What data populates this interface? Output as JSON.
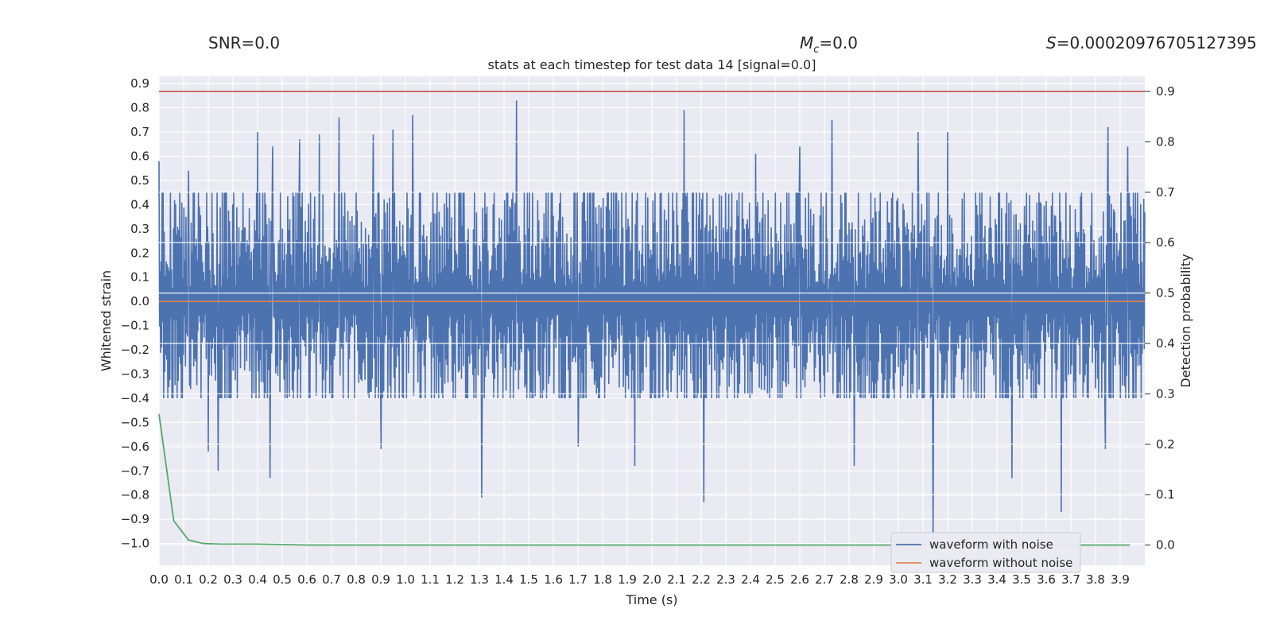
{
  "header": {
    "snr_label": "SNR=0.0",
    "mc_symbol": "M",
    "mc_sub": "c",
    "mc_value": "=0.0",
    "s_symbol": "S",
    "s_value": "=0.00020976705127395"
  },
  "chart_data": {
    "type": "line",
    "title": "stats at each timestep for test data 14 [signal=0.0]",
    "xlabel": "Time (s)",
    "ylabel": "Whitened strain",
    "y2label": "Detection probability",
    "xlim": [
      0.0,
      4.0
    ],
    "ylim": [
      -1.09,
      0.93
    ],
    "y2lim": [
      -0.04,
      0.93
    ],
    "xticks": [
      "0.0",
      "0.1",
      "0.2",
      "0.3",
      "0.4",
      "0.5",
      "0.6",
      "0.7",
      "0.8",
      "0.9",
      "1.0",
      "1.1",
      "1.2",
      "1.3",
      "1.4",
      "1.5",
      "1.6",
      "1.7",
      "1.8",
      "1.9",
      "2.0",
      "2.1",
      "2.2",
      "2.3",
      "2.4",
      "2.5",
      "2.6",
      "2.7",
      "2.8",
      "2.9",
      "3.0",
      "3.1",
      "3.2",
      "3.3",
      "3.4",
      "3.5",
      "3.6",
      "3.7",
      "3.8",
      "3.9"
    ],
    "yticks": [
      "0.9",
      "0.8",
      "0.7",
      "0.6",
      "0.5",
      "0.4",
      "0.3",
      "0.2",
      "0.1",
      "0.0",
      "-0.1",
      "-0.2",
      "-0.3",
      "-0.4",
      "-0.5",
      "-0.6",
      "-0.7",
      "-0.8",
      "-0.9",
      "-1.0"
    ],
    "y2ticks": [
      "0.9",
      "0.8",
      "0.7",
      "0.6",
      "0.5",
      "0.4",
      "0.3",
      "0.2",
      "0.1",
      "0.0"
    ],
    "threshold": 0.9,
    "series": [
      {
        "name": "waveform with noise",
        "color": "#4c72b0",
        "noise_band": [
          -0.35,
          0.4
        ],
        "peaks": [
          {
            "t": 0.0,
            "v": 0.58
          },
          {
            "t": 0.12,
            "v": 0.54
          },
          {
            "t": 0.4,
            "v": 0.7
          },
          {
            "t": 0.46,
            "v": 0.64
          },
          {
            "t": 0.57,
            "v": 0.67
          },
          {
            "t": 0.65,
            "v": 0.69
          },
          {
            "t": 0.73,
            "v": 0.76
          },
          {
            "t": 0.87,
            "v": 0.69
          },
          {
            "t": 0.95,
            "v": 0.71
          },
          {
            "t": 1.03,
            "v": 0.77
          },
          {
            "t": 1.45,
            "v": 0.83
          },
          {
            "t": 2.13,
            "v": 0.79
          },
          {
            "t": 2.42,
            "v": 0.61
          },
          {
            "t": 2.6,
            "v": 0.64
          },
          {
            "t": 2.73,
            "v": 0.75
          },
          {
            "t": 3.08,
            "v": 0.7
          },
          {
            "t": 3.2,
            "v": 0.7
          },
          {
            "t": 3.85,
            "v": 0.72
          },
          {
            "t": 3.93,
            "v": 0.64
          },
          {
            "t": 0.2,
            "v": -0.62
          },
          {
            "t": 0.24,
            "v": -0.7
          },
          {
            "t": 0.45,
            "v": -0.73
          },
          {
            "t": 0.9,
            "v": -0.61
          },
          {
            "t": 1.31,
            "v": -0.81
          },
          {
            "t": 2.21,
            "v": -0.83
          },
          {
            "t": 3.14,
            "v": -0.99
          },
          {
            "t": 3.46,
            "v": -0.73
          },
          {
            "t": 3.66,
            "v": -0.87
          },
          {
            "t": 3.84,
            "v": -0.61
          },
          {
            "t": 1.7,
            "v": -0.6
          },
          {
            "t": 1.93,
            "v": -0.68
          },
          {
            "t": 2.82,
            "v": -0.68
          }
        ]
      },
      {
        "name": "waveform without noise",
        "color": "#dd8452",
        "values": [
          0.0,
          0.0
        ]
      },
      {
        "name": "detection probability",
        "color": "#55a868",
        "axis": "right",
        "x": [
          0.0,
          0.06,
          0.12,
          0.18,
          0.25,
          0.3,
          0.4,
          0.5,
          0.6,
          1.0,
          2.0,
          3.0,
          3.94
        ],
        "values": [
          0.26,
          0.048,
          0.01,
          0.003,
          0.002,
          0.002,
          0.002,
          0.001,
          0.0,
          0.0,
          0.0,
          0.0,
          0.0
        ]
      },
      {
        "name": "threshold",
        "color": "#c44e52",
        "axis": "right",
        "values": [
          0.9,
          0.9
        ]
      }
    ],
    "legend": {
      "position": "bottom-right",
      "entries": [
        "waveform with noise",
        "waveform without noise"
      ]
    }
  }
}
